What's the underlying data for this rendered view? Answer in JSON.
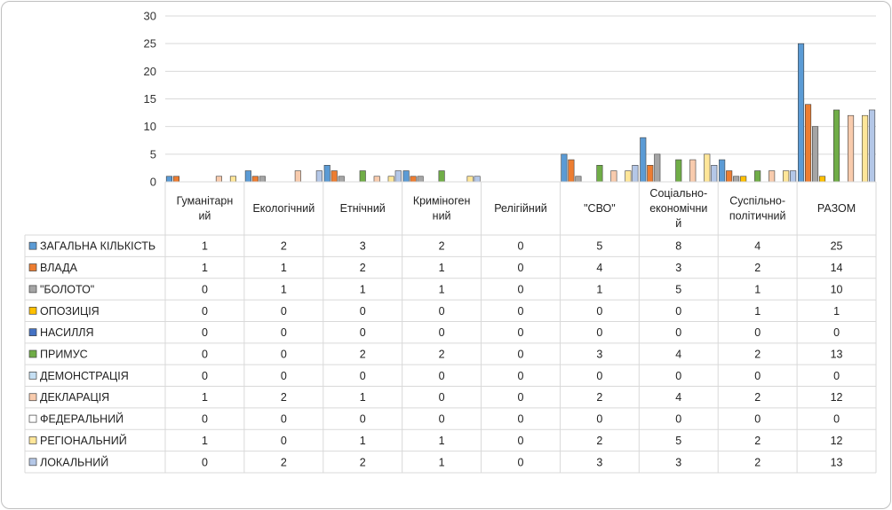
{
  "chart_data": {
    "type": "bar",
    "title": "",
    "xlabel": "",
    "ylabel": "",
    "ylim": [
      0,
      30
    ],
    "yticks": [
      0,
      5,
      10,
      15,
      20,
      25,
      30
    ],
    "grid": true,
    "legend": "data-table-left",
    "categories": [
      [
        "Гуманітарн",
        "ий"
      ],
      [
        "Екологічний"
      ],
      [
        "Етнічний"
      ],
      [
        "Криміноген",
        "ний"
      ],
      [
        "Релігійний"
      ],
      [
        "\"СВО\""
      ],
      [
        "Соціально-",
        "економічни",
        "й"
      ],
      [
        "Суспільно-",
        "політичний"
      ],
      [
        "РАЗОМ"
      ]
    ],
    "series": [
      {
        "name": "ЗАГАЛЬНА КІЛЬКІСТЬ",
        "color": "#5b9bd5",
        "values": [
          1,
          2,
          3,
          2,
          0,
          5,
          8,
          4,
          25
        ]
      },
      {
        "name": "ВЛАДА",
        "color": "#ed7d31",
        "values": [
          1,
          1,
          2,
          1,
          0,
          4,
          3,
          2,
          14
        ]
      },
      {
        "name": "\"БОЛОТО\"",
        "color": "#a5a5a5",
        "values": [
          0,
          1,
          1,
          1,
          0,
          1,
          5,
          1,
          10
        ]
      },
      {
        "name": "ОПОЗИЦІЯ",
        "color": "#ffc000",
        "values": [
          0,
          0,
          0,
          0,
          0,
          0,
          0,
          1,
          1
        ]
      },
      {
        "name": "НАСИЛЛЯ",
        "color": "#4472c4",
        "values": [
          0,
          0,
          0,
          0,
          0,
          0,
          0,
          0,
          0
        ]
      },
      {
        "name": "ПРИМУС",
        "color": "#70ad47",
        "values": [
          0,
          0,
          2,
          2,
          0,
          3,
          4,
          2,
          13
        ]
      },
      {
        "name": "ДЕМОНСТРАЦІЯ",
        "color": "#c5dff3",
        "values": [
          0,
          0,
          0,
          0,
          0,
          0,
          0,
          0,
          0
        ]
      },
      {
        "name": "ДЕКЛАРАЦІЯ",
        "color": "#f8cbad",
        "values": [
          1,
          2,
          1,
          0,
          0,
          2,
          4,
          2,
          12
        ]
      },
      {
        "name": "ФЕДЕРАЛЬНИЙ",
        "color": "#ffffff",
        "values": [
          0,
          0,
          0,
          0,
          0,
          0,
          0,
          0,
          0
        ]
      },
      {
        "name": "РЕГІОНАЛЬНИЙ",
        "color": "#ffe699",
        "values": [
          1,
          0,
          1,
          1,
          0,
          2,
          5,
          2,
          12
        ]
      },
      {
        "name": "ЛОКАЛЬНИЙ",
        "color": "#b4c7e7",
        "values": [
          0,
          2,
          2,
          1,
          0,
          3,
          3,
          2,
          13
        ]
      }
    ]
  }
}
